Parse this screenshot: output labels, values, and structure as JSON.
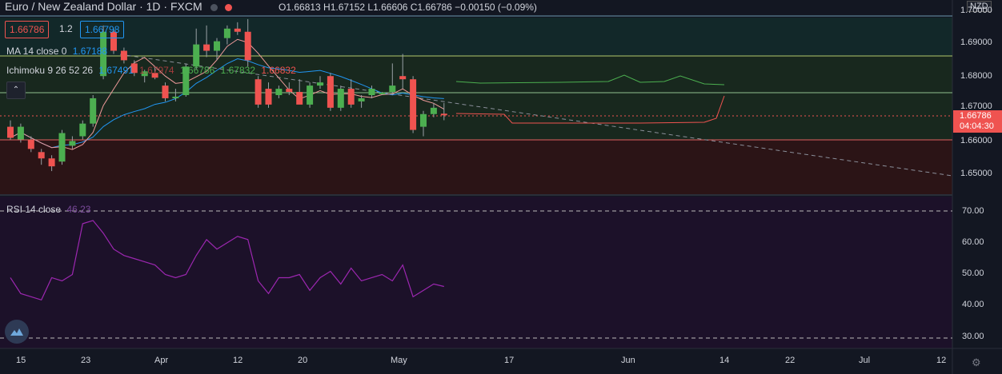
{
  "header": {
    "symbol_title": "Euro / New Zealand Dollar · 1D · FXCM",
    "ohlc": "O1.66813 H1.67152 L1.66606 C1.66786 −0.00150 (−0.09%)",
    "dot_colors": [
      "#4c525e",
      "#ef5350"
    ]
  },
  "trade": {
    "sell": "1.66786",
    "spread": "1.2",
    "buy": "1.66798"
  },
  "legends": {
    "ma": "MA 14 close 0",
    "ma_value": "1.67188",
    "ichimoku": "Ichimoku 9 26 52 26",
    "ichimoku_values": [
      "1.67491",
      "1.67974",
      "1.66786",
      "1.67832",
      "1.66832"
    ],
    "rsi": "RSI 14 close",
    "rsi_value": "46.23"
  },
  "axis": {
    "currency": "NZD",
    "price_ticks": [
      "1.70000",
      "1.69000",
      "1.68000",
      "1.67000",
      "1.66000",
      "1.65000"
    ],
    "rsi_ticks": [
      "70.00",
      "60.00",
      "50.00",
      "40.00",
      "30.00"
    ],
    "last_price": "1.66786",
    "countdown": "04:04:30",
    "time_ticks": [
      "15",
      "23",
      "Apr",
      "12",
      "20",
      "May",
      "17",
      "Jun",
      "14",
      "22",
      "Jul",
      "12"
    ]
  },
  "colors": {
    "bg": "#131722",
    "up": "#4caf50",
    "down": "#ef5350",
    "ma": "#2196f3",
    "rsi": "#9c27b0"
  },
  "chart_data": {
    "type": "candlestick",
    "candles_ohlc": [
      [
        1.664,
        1.666,
        1.66,
        1.6605
      ],
      [
        1.66,
        1.665,
        1.659,
        1.664
      ],
      [
        1.66,
        1.661,
        1.656,
        1.657
      ],
      [
        1.656,
        1.657,
        1.652,
        1.654
      ],
      [
        1.654,
        1.655,
        1.65,
        1.6515
      ],
      [
        1.653,
        1.663,
        1.652,
        1.662
      ],
      [
        1.658,
        1.661,
        1.657,
        1.6595
      ],
      [
        1.661,
        1.666,
        1.66,
        1.665
      ],
      [
        1.665,
        1.674,
        1.664,
        1.673
      ],
      [
        1.68,
        1.696,
        1.679,
        1.694
      ],
      [
        1.694,
        1.695,
        1.687,
        1.688
      ],
      [
        1.688,
        1.689,
        1.684,
        1.685
      ],
      [
        1.684,
        1.685,
        1.68,
        1.681
      ],
      [
        1.68,
        1.682,
        1.678,
        1.6815
      ],
      [
        1.681,
        1.683,
        1.679,
        1.6795
      ],
      [
        1.677,
        1.678,
        1.672,
        1.673
      ],
      [
        1.673,
        1.676,
        1.672,
        1.6735
      ],
      [
        1.674,
        1.684,
        1.6735,
        1.683
      ],
      [
        1.683,
        1.695,
        1.682,
        1.69
      ],
      [
        1.69,
        1.696,
        1.686,
        1.688
      ],
      [
        1.688,
        1.692,
        1.685,
        1.691
      ],
      [
        1.692,
        1.696,
        1.69,
        1.695
      ],
      [
        1.695,
        1.697,
        1.693,
        1.694
      ],
      [
        1.694,
        1.698,
        1.683,
        1.685
      ],
      [
        1.679,
        1.68,
        1.67,
        1.671
      ],
      [
        1.676,
        1.678,
        1.67,
        1.671
      ],
      [
        1.674,
        1.677,
        1.673,
        1.676
      ],
      [
        1.676,
        1.678,
        1.674,
        1.675
      ],
      [
        1.675,
        1.679,
        1.674,
        1.671
      ],
      [
        1.671,
        1.678,
        1.67,
        1.677
      ],
      [
        1.677,
        1.68,
        1.676,
        1.678
      ],
      [
        1.68,
        1.681,
        1.669,
        1.67
      ],
      [
        1.67,
        1.677,
        1.669,
        1.676
      ],
      [
        1.676,
        1.679,
        1.67,
        1.671
      ],
      [
        1.672,
        1.674,
        1.67,
        1.673
      ],
      [
        1.674,
        1.677,
        1.673,
        1.676
      ],
      [
        1.6745,
        1.675,
        1.674,
        1.6748
      ],
      [
        1.675,
        1.684,
        1.674,
        1.677
      ],
      [
        1.68,
        1.687,
        1.676,
        1.679
      ],
      [
        1.679,
        1.68,
        1.662,
        1.663
      ],
      [
        1.664,
        1.669,
        1.661,
        1.668
      ],
      [
        1.668,
        1.6715,
        1.667,
        1.67
      ],
      [
        1.66813,
        1.67152,
        1.66606,
        1.66786
      ]
    ],
    "rsi_values": [
      49,
      44,
      43,
      42,
      49,
      48,
      50,
      66,
      67,
      63,
      58,
      56,
      55,
      54,
      53,
      50,
      49,
      50,
      56,
      61,
      58,
      60,
      62,
      61,
      48,
      44,
      49,
      49,
      50,
      45,
      49,
      51,
      47,
      52,
      48,
      49,
      50,
      48,
      53,
      43,
      45,
      47,
      46.23
    ],
    "ylim": [
      1.645,
      1.702
    ],
    "rsi_ylim": [
      27,
      75
    ]
  }
}
